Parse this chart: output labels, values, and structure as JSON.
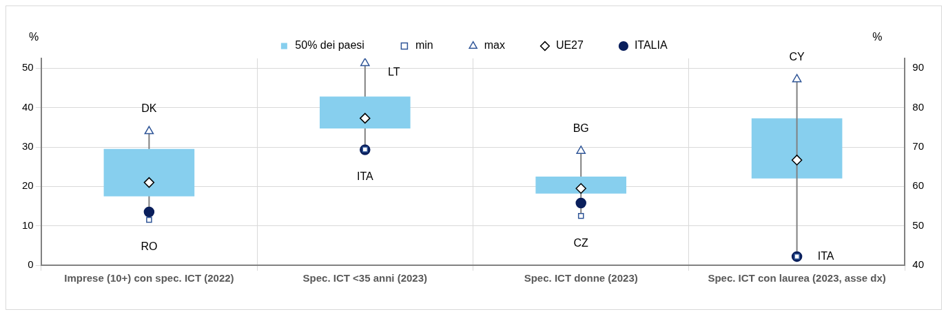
{
  "chart_data": {
    "type": "bar",
    "categories": [
      "Imprese (10+) con spec. ICT (2022)",
      "Spec. ICT <35 anni (2023)",
      "Spec. ICT donne (2023)",
      "Spec. ICT con laurea (2023, asse dx)"
    ],
    "ylabel": "%",
    "y2label": "%",
    "ylim": [
      0,
      52.5
    ],
    "yticks": [
      0,
      10,
      20,
      30,
      40,
      50
    ],
    "y2lim": [
      40,
      92.5
    ],
    "y2ticks": [
      40,
      50,
      60,
      70,
      80,
      90
    ],
    "grid": true,
    "legend": "top",
    "series": [
      {
        "name": "50% dei paesi",
        "color": "#87cfee",
        "base": [
          17.5,
          34.7,
          18.2,
          null
        ],
        "values": [
          12,
          8.1,
          4.3,
          null
        ]
      },
      {
        "axis": "y2",
        "color": "#87cfee",
        "base": [
          null,
          null,
          null,
          62
        ],
        "values": [
          null,
          null,
          null,
          15.3
        ]
      },
      {
        "name": "min",
        "type": "scatter",
        "marker": "square",
        "color": "#2f5597",
        "values": [
          11.5,
          29.4,
          12.5,
          null
        ]
      },
      {
        "name": "max",
        "type": "scatter",
        "marker": "triangle",
        "color": "#2f5597",
        "values": [
          34,
          51.3,
          29,
          null
        ]
      },
      {
        "name": "UE27",
        "type": "scatter",
        "marker": "diamond",
        "color": "#000000",
        "values": [
          21,
          37.3,
          19.5,
          null
        ]
      },
      {
        "name": "ITALIA",
        "type": "scatter",
        "marker": "circle",
        "color": "#0a1f5c",
        "values": [
          13.5,
          29.3,
          15.8,
          null
        ]
      },
      {
        "type": "scatter",
        "axis": "y2",
        "marker": "square",
        "color": "#2f5597",
        "values": [
          null,
          null,
          null,
          42.2
        ]
      },
      {
        "type": "scatter",
        "axis": "y2",
        "marker": "triangle",
        "color": "#2f5597",
        "values": [
          null,
          null,
          null,
          87.2
        ]
      },
      {
        "type": "scatter",
        "axis": "y2",
        "marker": "diamond",
        "color": "#000000",
        "values": [
          null,
          null,
          null,
          66.7
        ]
      },
      {
        "type": "scatter",
        "axis": "y2",
        "marker": "circle",
        "color": "#0a1f5c",
        "values": [
          null,
          null,
          null,
          42.2
        ]
      }
    ],
    "annotations": [
      {
        "text": "DK",
        "x": "Imprese (10+) con spec. ICT (2022)",
        "y": 34
      },
      {
        "text": "RO",
        "x": "Imprese (10+) con spec. ICT (2022)",
        "y": 11.5
      },
      {
        "text": "LT",
        "x": "Spec. ICT <35 anni (2023)",
        "y": 51.3
      },
      {
        "text": "ITA",
        "x": "Spec. ICT <35 anni (2023)",
        "y": 29.3
      },
      {
        "text": "BG",
        "x": "Spec. ICT donne (2023)",
        "y": 29
      },
      {
        "text": "CZ",
        "x": "Spec. ICT donne (2023)",
        "y": 12.5
      },
      {
        "text": "CY",
        "x": "Spec. ICT con laurea (2023, asse dx)",
        "y": 47.2
      },
      {
        "text": "ITA",
        "x": "Spec. ICT con laurea (2023, asse dx)",
        "y": 2.2
      }
    ]
  }
}
